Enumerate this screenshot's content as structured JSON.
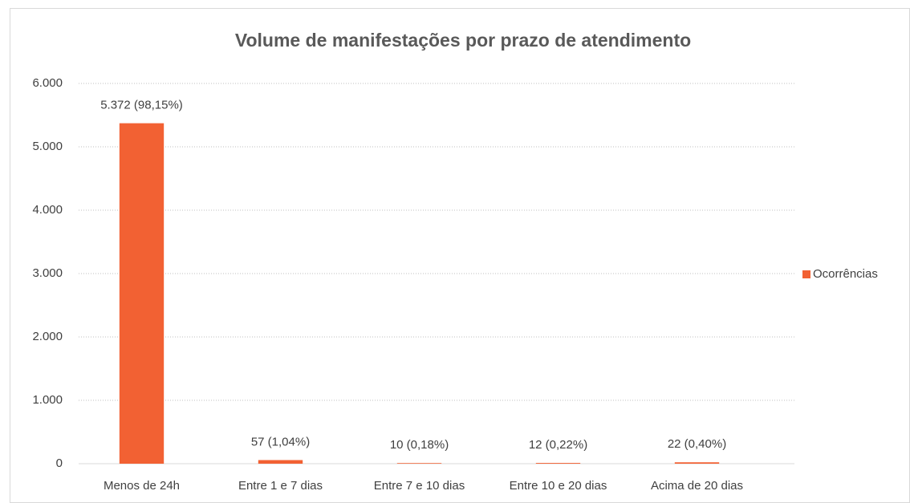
{
  "chart_data": {
    "type": "bar",
    "title": "Volume de manifestações por prazo de atendimento",
    "categories": [
      "Menos de 24h",
      "Entre 1 e 7 dias",
      "Entre 7 e 10 dias",
      "Entre 10 e 20 dias",
      "Acima de 20 dias"
    ],
    "series": [
      {
        "name": "Ocorrências",
        "color": "#f26133",
        "values": [
          5372,
          57,
          10,
          12,
          22
        ],
        "value_labels": [
          "5.372 (98,15%)",
          "57 (1,04%)",
          "10 (0,18%)",
          "12 (0,22%)",
          "22 (0,40%)"
        ]
      }
    ],
    "ylim": [
      0,
      6000
    ],
    "yticks": [
      0,
      {
        "value": 1000,
        "label": "1.000"
      },
      {
        "value": 2000,
        "label": "2.000"
      },
      {
        "value": 3000,
        "label": "3.000"
      },
      {
        "value": 4000,
        "label": "4.000"
      },
      {
        "value": 5000,
        "label": "5.000"
      },
      {
        "value": 6000,
        "label": "6.000"
      }
    ],
    "grid": true,
    "legend": "right"
  }
}
